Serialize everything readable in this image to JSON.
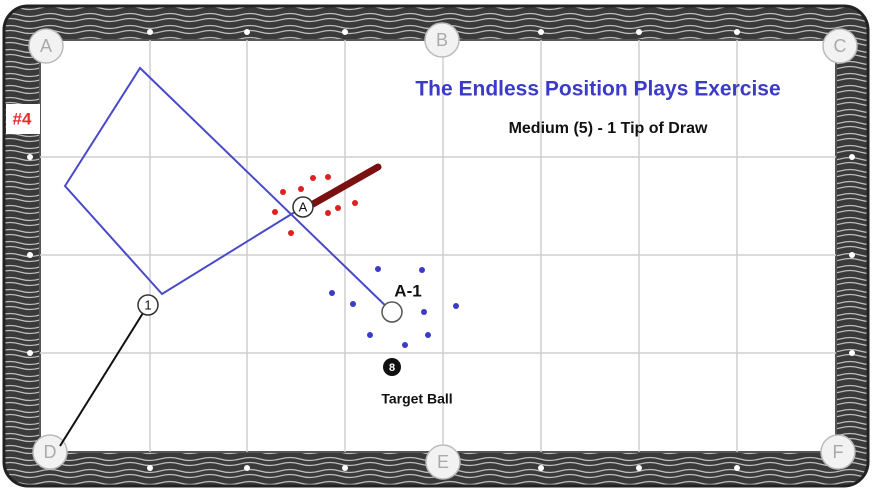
{
  "header": {
    "title": "The Endless Position Plays Exercise",
    "subtitle": "Medium (5) - 1 Tip of Draw",
    "number": "#4"
  },
  "pockets": [
    "A",
    "B",
    "C",
    "D",
    "E",
    "F"
  ],
  "balls": {
    "cue": "A",
    "object": "1",
    "position": "A-1",
    "eight": "8",
    "target_label": "Target Ball"
  }
}
